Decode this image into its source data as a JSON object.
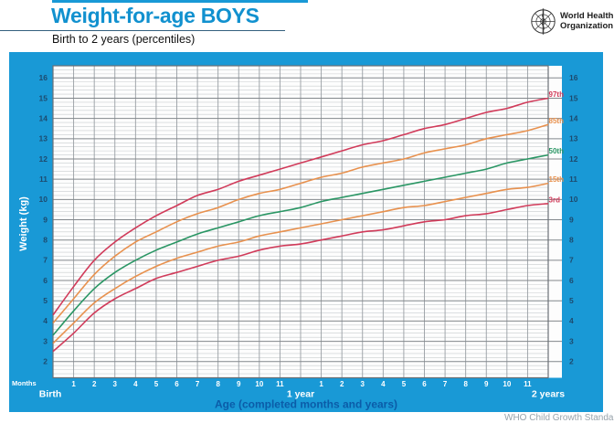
{
  "header": {
    "title": "Weight-for-age BOYS",
    "subtitle": "Birth to 2 years (percentiles)",
    "who_logo": {
      "line1": "World Health",
      "line2": "Organization"
    }
  },
  "footer": {
    "credit": "WHO Child Growth Standards"
  },
  "colors": {
    "who_blue": "#1999d6",
    "title_blue": "#1191cf",
    "axis_label_blue": "#0b5ca8",
    "tick_navy": "#1d4a6e",
    "bottom_tick_white": "#ffffff",
    "red": "#d13b5a",
    "orange": "#e8914e",
    "green": "#2a9664",
    "grid_minor": "#c9cdd0",
    "grid_major": "#82878c",
    "grid_vertical": "#989ea3",
    "plot_border": "#6b7076",
    "plot_bg": "#fdfdfd"
  },
  "chart_data": {
    "type": "line",
    "title": "Weight-for-age BOYS",
    "subtitle": "Birth to 2 years (percentiles)",
    "xlabel": "Age (completed months and years)",
    "ylabel": "Weight (kg)",
    "xlim_months": [
      0,
      24
    ],
    "ylim_kg": [
      1.2,
      16.6
    ],
    "y_ticks": [
      2,
      3,
      4,
      5,
      6,
      7,
      8,
      9,
      10,
      11,
      12,
      13,
      14,
      15,
      16
    ],
    "y_ticks_both_sides": true,
    "grid": {
      "minor_step_kg": 0.2,
      "major_step_kg": 1,
      "x_step_months": 1,
      "grid_on": true
    },
    "x_axis": {
      "months_label": "Months",
      "birth_label": "Birth",
      "year1_label": "1 year",
      "year2_label": "2 years",
      "month_numbers_first_year": [
        "1",
        "2",
        "3",
        "4",
        "5",
        "6",
        "7",
        "8",
        "9",
        "10",
        "11"
      ],
      "month_numbers_second_year": [
        "1",
        "2",
        "3",
        "4",
        "5",
        "6",
        "7",
        "8",
        "9",
        "10",
        "11"
      ]
    },
    "legend_position": "right-end-labels",
    "x_months": [
      0,
      1,
      2,
      3,
      4,
      5,
      6,
      7,
      8,
      9,
      10,
      11,
      12,
      13,
      14,
      15,
      16,
      17,
      18,
      19,
      20,
      21,
      22,
      23,
      24
    ],
    "series": [
      {
        "name": "97th",
        "color_key": "red",
        "values": [
          4.3,
          5.7,
          7.0,
          7.9,
          8.6,
          9.2,
          9.7,
          10.2,
          10.5,
          10.9,
          11.2,
          11.5,
          11.8,
          12.1,
          12.4,
          12.7,
          12.9,
          13.2,
          13.5,
          13.7,
          14.0,
          14.3,
          14.5,
          14.8,
          15.0
        ]
      },
      {
        "name": "85th",
        "color_key": "orange",
        "values": [
          3.9,
          5.1,
          6.3,
          7.2,
          7.9,
          8.4,
          8.9,
          9.3,
          9.6,
          10.0,
          10.3,
          10.5,
          10.8,
          11.1,
          11.3,
          11.6,
          11.8,
          12.0,
          12.3,
          12.5,
          12.7,
          13.0,
          13.2,
          13.4,
          13.7
        ]
      },
      {
        "name": "50th",
        "color_key": "green",
        "values": [
          3.3,
          4.5,
          5.6,
          6.4,
          7.0,
          7.5,
          7.9,
          8.3,
          8.6,
          8.9,
          9.2,
          9.4,
          9.6,
          9.9,
          10.1,
          10.3,
          10.5,
          10.7,
          10.9,
          11.1,
          11.3,
          11.5,
          11.8,
          12.0,
          12.2
        ]
      },
      {
        "name": "15th",
        "color_key": "orange",
        "values": [
          2.9,
          3.9,
          4.9,
          5.6,
          6.2,
          6.7,
          7.1,
          7.4,
          7.7,
          7.9,
          8.2,
          8.4,
          8.6,
          8.8,
          9.0,
          9.2,
          9.4,
          9.6,
          9.7,
          9.9,
          10.1,
          10.3,
          10.5,
          10.6,
          10.8
        ]
      },
      {
        "name": "3rd",
        "color_key": "red",
        "values": [
          2.5,
          3.4,
          4.4,
          5.1,
          5.6,
          6.1,
          6.4,
          6.7,
          7.0,
          7.2,
          7.5,
          7.7,
          7.8,
          8.0,
          8.2,
          8.4,
          8.5,
          8.7,
          8.9,
          9.0,
          9.2,
          9.3,
          9.5,
          9.7,
          9.8
        ]
      }
    ]
  }
}
